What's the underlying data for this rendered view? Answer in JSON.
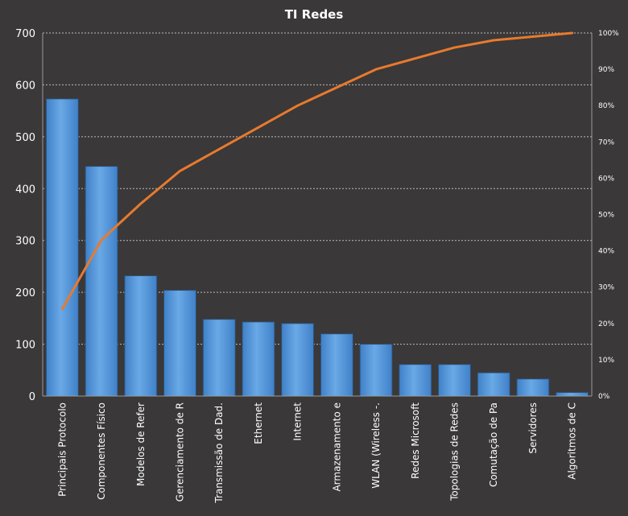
{
  "chart_data": {
    "type": "bar",
    "title": "TI Redes",
    "categories": [
      "Principais Protocolo",
      "Componentes Físico",
      "Modelos de Refer",
      "Gerenciamento de R",
      "Transmissão de Dad.",
      "Ethernet",
      "Internet",
      "Armazenamento  e",
      "WLAN (Wireless -.",
      "Redes Microsoft",
      "Topologias de Redes",
      "Comutação de Pa",
      "Servidores",
      "Algoritmos de C"
    ],
    "series": [
      {
        "values": [
          573,
          443,
          232,
          204,
          148,
          143,
          140,
          120,
          100,
          61,
          61,
          45,
          33,
          7
        ]
      },
      {
        "axis": "secondary",
        "type": "line",
        "values": [
          0.24,
          0.43,
          0.53,
          0.62,
          0.68,
          0.74,
          0.8,
          0.85,
          0.9,
          0.93,
          0.96,
          0.98,
          0.99,
          1.0
        ]
      }
    ],
    "ylim": [
      0,
      700
    ],
    "yticks": [
      "0",
      "100",
      "200",
      "300",
      "400",
      "500",
      "600",
      "700"
    ],
    "y2lim": [
      0,
      1
    ],
    "y2ticks": [
      "0%",
      "10%",
      "20%",
      "30%",
      "40%",
      "50%",
      "60%",
      "70%",
      "80%",
      "90%",
      "100%"
    ],
    "grid": true,
    "legend": "none",
    "colors": {
      "bar": "#4a8fd6",
      "bar_light": "#6aa9e6",
      "line": "#e87a2e",
      "background": "#3a3838"
    }
  }
}
